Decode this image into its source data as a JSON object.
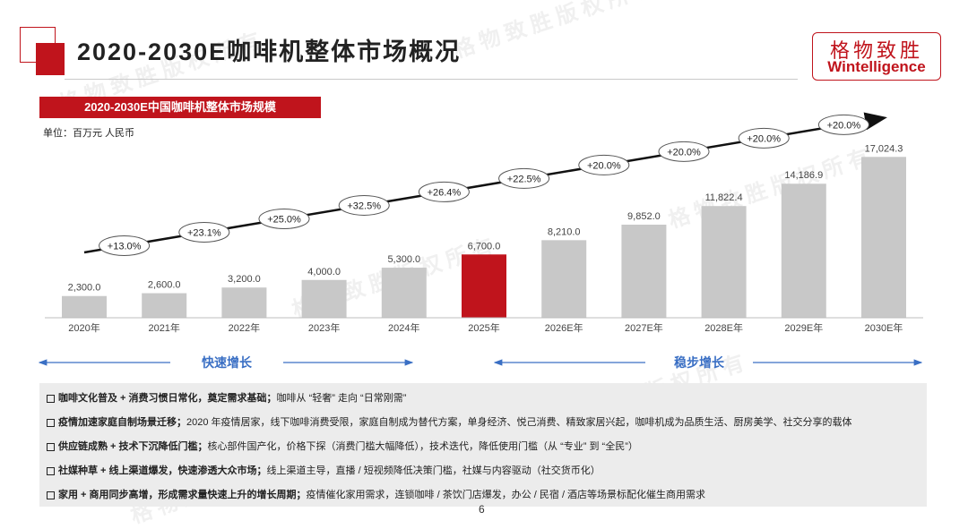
{
  "header": {
    "title": "2020-2030E咖啡机整体市场概况",
    "logo_cn": "格物致胜",
    "logo_en": "Wintelligence"
  },
  "subtitle": "2020-2030E中国咖啡机整体市场规模",
  "unit_label": "单位：百万元 人民币",
  "watermark": "格物致胜版权所有",
  "colors": {
    "accent": "#c0141c",
    "bar": "#c8c8c8",
    "highlight_bar": "#c0141c",
    "stage_arrow": "#3a6fc4"
  },
  "chart_data": {
    "type": "bar",
    "categories": [
      "2020年",
      "2021年",
      "2022年",
      "2023年",
      "2024年",
      "2025年",
      "2026E年",
      "2027E年",
      "2028E年",
      "2029E年",
      "2030E年"
    ],
    "values": [
      2300.0,
      2600.0,
      3200.0,
      4000.0,
      5300.0,
      6700.0,
      8210.0,
      9852.0,
      11822.4,
      14186.9,
      17024.3
    ],
    "value_labels": [
      "2,300.0",
      "2,600.0",
      "3,200.0",
      "4,000.0",
      "5,300.0",
      "6,700.0",
      "8,210.0",
      "9,852.0",
      "11,822.4",
      "14,186.9",
      "17,024.3"
    ],
    "highlight_index": 5,
    "growth_rates": [
      "+13.0%",
      "+23.1%",
      "+25.0%",
      "+32.5%",
      "+26.4%",
      "+22.5%",
      "+20.0%",
      "+20.0%",
      "+20.0%",
      "+20.0%"
    ],
    "ylim": [
      0,
      18000
    ],
    "stages": [
      {
        "label": "快速增长",
        "from_index": 0,
        "to_index": 4
      },
      {
        "label": "稳步增长",
        "from_index": 5,
        "to_index": 10
      }
    ]
  },
  "bullets": [
    {
      "bold": "咖啡文化普及 + 消费习惯日常化，奠定需求基础；",
      "text": "咖啡从 “轻奢” 走向 “日常刚需”"
    },
    {
      "bold": "疫情加速家庭自制场景迁移；",
      "text": "2020 年疫情居家，线下咖啡消费受限，家庭自制成为替代方案，单身经济、悦己消费、精致家居兴起，咖啡机成为品质生活、厨房美学、社交分享的载体"
    },
    {
      "bold": "供应链成熟 + 技术下沉降低门槛；",
      "text": "核心部件国产化，价格下探（消费门槛大幅降低），技术迭代，降低使用门槛（从 “专业” 到 “全民”）"
    },
    {
      "bold": "社媒种草 + 线上渠道爆发，快速渗透大众市场；",
      "text": "线上渠道主导，直播 / 短视频降低决策门槛，社媒与内容驱动（社交货币化）"
    },
    {
      "bold": "家用 + 商用同步高增，形成需求量快速上升的增长周期；",
      "text": "疫情催化家用需求，连锁咖啡 / 茶饮门店爆发，办公 / 民宿 / 酒店等场景标配化催生商用需求"
    }
  ],
  "page_number": "6"
}
